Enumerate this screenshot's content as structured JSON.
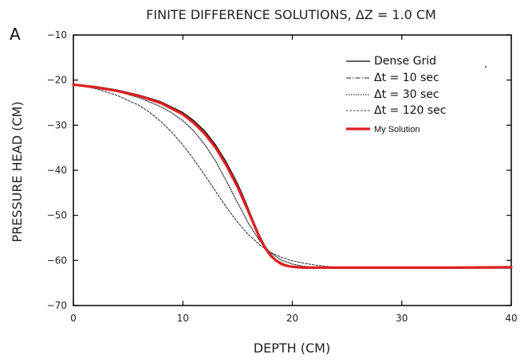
{
  "panel_letter": "A",
  "chart_data": {
    "type": "line",
    "title": "FINITE DIFFERENCE SOLUTIONS, ΔZ = 1.0 CM",
    "xlabel": "DEPTH (CM)",
    "ylabel": "PRESSURE HEAD (CM)",
    "xlim": [
      0,
      40
    ],
    "ylim": [
      -70,
      -10
    ],
    "xticks": [
      0,
      10,
      20,
      30,
      40
    ],
    "yticks": [
      -10,
      -20,
      -30,
      -40,
      -50,
      -60,
      -70
    ],
    "grid": false,
    "legend_position": "top-right",
    "series": [
      {
        "name": "Dense Grid",
        "style": "solid",
        "color": "#000000",
        "x": [
          0,
          2,
          4,
          6,
          8,
          10,
          11,
          12,
          13,
          14,
          15,
          15.5,
          16,
          16.5,
          17,
          17.5,
          18,
          18.5,
          19,
          19.5,
          20,
          21,
          22,
          24,
          26,
          30,
          35,
          40
        ],
        "y": [
          -20.9,
          -21.4,
          -22.2,
          -23.3,
          -24.8,
          -27.2,
          -29.0,
          -31.3,
          -34.4,
          -38.3,
          -43.0,
          -45.7,
          -48.6,
          -51.6,
          -54.4,
          -56.8,
          -58.6,
          -59.8,
          -60.6,
          -61.1,
          -61.4,
          -61.6,
          -61.7,
          -61.7,
          -61.7,
          -61.7,
          -61.7,
          -61.7
        ]
      },
      {
        "name": "Δt = 10 sec",
        "style": "dashdot",
        "color": "#222222",
        "x": [
          0,
          2,
          4,
          6,
          8,
          10,
          11,
          12,
          13,
          14,
          15,
          15.5,
          16,
          16.5,
          17,
          17.5,
          18,
          18.5,
          19,
          19.5,
          20,
          21,
          22,
          24,
          26,
          30,
          35,
          40
        ],
        "y": [
          -20.9,
          -21.4,
          -22.2,
          -23.4,
          -24.9,
          -27.4,
          -29.3,
          -31.7,
          -34.9,
          -38.9,
          -43.6,
          -46.2,
          -49.0,
          -51.9,
          -54.6,
          -56.9,
          -58.6,
          -59.8,
          -60.5,
          -61.0,
          -61.3,
          -61.5,
          -61.6,
          -61.7,
          -61.7,
          -61.7,
          -61.7,
          -61.7
        ]
      },
      {
        "name": "Δt = 30 sec",
        "style": "dotted",
        "color": "#333333",
        "x": [
          0,
          2,
          4,
          6,
          8,
          9,
          10,
          11,
          12,
          13,
          14,
          15,
          16,
          17,
          18,
          19,
          20,
          21,
          22,
          24,
          26,
          30,
          35,
          40
        ],
        "y": [
          -20.9,
          -21.5,
          -22.5,
          -23.9,
          -25.9,
          -27.3,
          -29.0,
          -31.3,
          -34.3,
          -38.0,
          -42.5,
          -47.2,
          -51.8,
          -55.6,
          -58.3,
          -59.9,
          -60.8,
          -61.3,
          -61.5,
          -61.7,
          -61.7,
          -61.7,
          -61.7,
          -61.7
        ]
      },
      {
        "name": "Δt = 120 sec",
        "style": "dashed-fine",
        "color": "#333333",
        "x": [
          0,
          2,
          4,
          6,
          7,
          8,
          9,
          10,
          11,
          12,
          13,
          14,
          15,
          16,
          17,
          18,
          19,
          20,
          21,
          22,
          23,
          24,
          25,
          26,
          28,
          30,
          35,
          40
        ],
        "y": [
          -20.9,
          -21.9,
          -23.4,
          -25.6,
          -27.2,
          -29.2,
          -31.6,
          -34.4,
          -37.6,
          -41.1,
          -44.7,
          -48.3,
          -51.5,
          -54.3,
          -56.5,
          -58.2,
          -59.3,
          -60.1,
          -60.6,
          -61.0,
          -61.3,
          -61.5,
          -61.6,
          -61.7,
          -61.7,
          -61.7,
          -61.7,
          -61.7
        ]
      },
      {
        "name": "My Solution",
        "style": "solid-thick",
        "color": "#e02020",
        "x": [
          0,
          2,
          4,
          6,
          8,
          10,
          11,
          12,
          13,
          14,
          15,
          15.5,
          16,
          16.5,
          17,
          17.5,
          18,
          18.5,
          19,
          19.5,
          20,
          21,
          22,
          24,
          26,
          30,
          35,
          40
        ],
        "y": [
          -21.0,
          -21.6,
          -22.4,
          -23.5,
          -25.1,
          -27.6,
          -29.5,
          -31.9,
          -35.0,
          -39.0,
          -43.7,
          -46.4,
          -49.2,
          -52.1,
          -54.9,
          -57.2,
          -58.9,
          -60.0,
          -60.8,
          -61.2,
          -61.4,
          -61.6,
          -61.6,
          -61.6,
          -61.6,
          -61.6,
          -61.6,
          -61.5
        ]
      }
    ]
  }
}
